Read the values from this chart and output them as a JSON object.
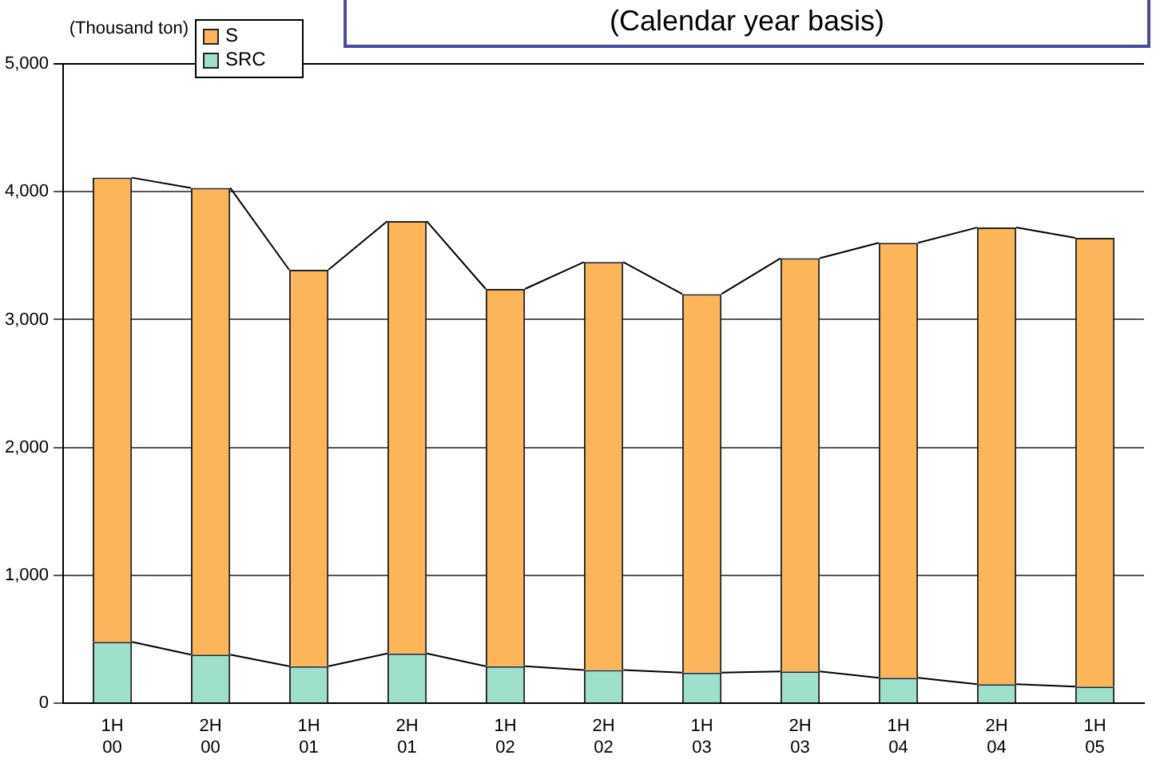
{
  "chart_data": {
    "type": "bar",
    "title": "(Calendar year basis)",
    "ylabel": "(Thousand ton)",
    "stacked": true,
    "categories": [
      "1H 00",
      "2H 00",
      "1H 01",
      "2H 01",
      "1H 02",
      "2H 02",
      "1H 03",
      "2H 03",
      "1H 04",
      "2H 04",
      "1H 05"
    ],
    "series": [
      {
        "name": "SRC",
        "color": "#9ee0cc",
        "values": [
          480,
          380,
          290,
          390,
          290,
          260,
          240,
          250,
          200,
          150,
          130
        ]
      },
      {
        "name": "S",
        "color": "#fdb55a",
        "values": [
          3630,
          3650,
          3100,
          3380,
          2950,
          3190,
          2960,
          3230,
          3400,
          3570,
          3510
        ]
      }
    ],
    "ylim": [
      0,
      5000
    ],
    "yticks": [
      {
        "value": 0,
        "label": "0"
      },
      {
        "value": 1000,
        "label": "1,000"
      },
      {
        "value": 2000,
        "label": "2,000"
      },
      {
        "value": 3000,
        "label": "3,000"
      },
      {
        "value": 4000,
        "label": "4,000"
      },
      {
        "value": 5000,
        "label": "5,000"
      }
    ],
    "grid": "y",
    "legend": "top left"
  }
}
